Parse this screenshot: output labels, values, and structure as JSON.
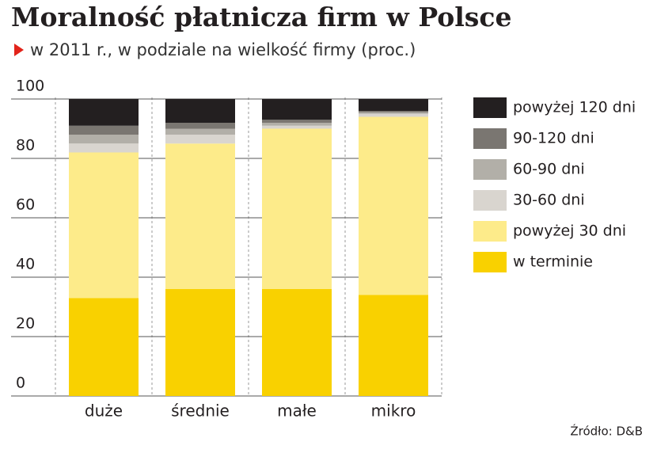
{
  "chart_data": {
    "type": "stacked_bar",
    "title": "Moralność płatnicza firm w Polsce",
    "subtitle": "w 2011 r., w podziale na wielkość firmy (proc.)",
    "source": "Źródło: D&B",
    "categories": [
      "duże",
      "średnie",
      "małe",
      "mikro"
    ],
    "series": [
      {
        "name": "w terminie",
        "color": "#f9d100",
        "values": [
          33,
          36,
          36,
          34
        ]
      },
      {
        "name": "powyżej 30 dni",
        "color": "#fdeb8a",
        "values": [
          49,
          49,
          54,
          60
        ]
      },
      {
        "name": "30-60 dni",
        "color": "#d9d5cf",
        "values": [
          3,
          3,
          1,
          1
        ]
      },
      {
        "name": "60-90 dni",
        "color": "#b2afa8",
        "values": [
          3,
          2,
          1,
          0.5
        ]
      },
      {
        "name": "90-120 dni",
        "color": "#7a7671",
        "values": [
          3,
          2,
          1,
          0.5
        ]
      },
      {
        "name": "powyżej 120 dni",
        "color": "#231f20",
        "values": [
          9,
          8,
          7,
          4
        ]
      }
    ],
    "ylim": [
      0,
      100
    ],
    "yticks": [
      0,
      20,
      40,
      60,
      80,
      100
    ],
    "grid": true
  }
}
